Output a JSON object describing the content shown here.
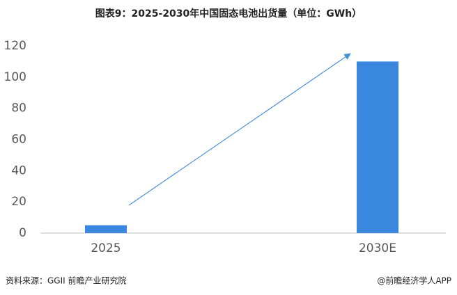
{
  "chart_data": {
    "type": "bar",
    "title": "图表9：2025-2030年中国固态电池出货量（单位：GWh）",
    "categories": [
      "2025",
      "2030E"
    ],
    "values": [
      5,
      110
    ],
    "color": "#3a87e0",
    "ylim": [
      0,
      120
    ],
    "yticks": [
      0,
      20,
      40,
      60,
      80,
      100,
      120
    ],
    "grid": false
  },
  "footer": {
    "source": "资料来源：GGII 前瞻产业研究院",
    "brand": "@前瞻经济学人APP"
  }
}
